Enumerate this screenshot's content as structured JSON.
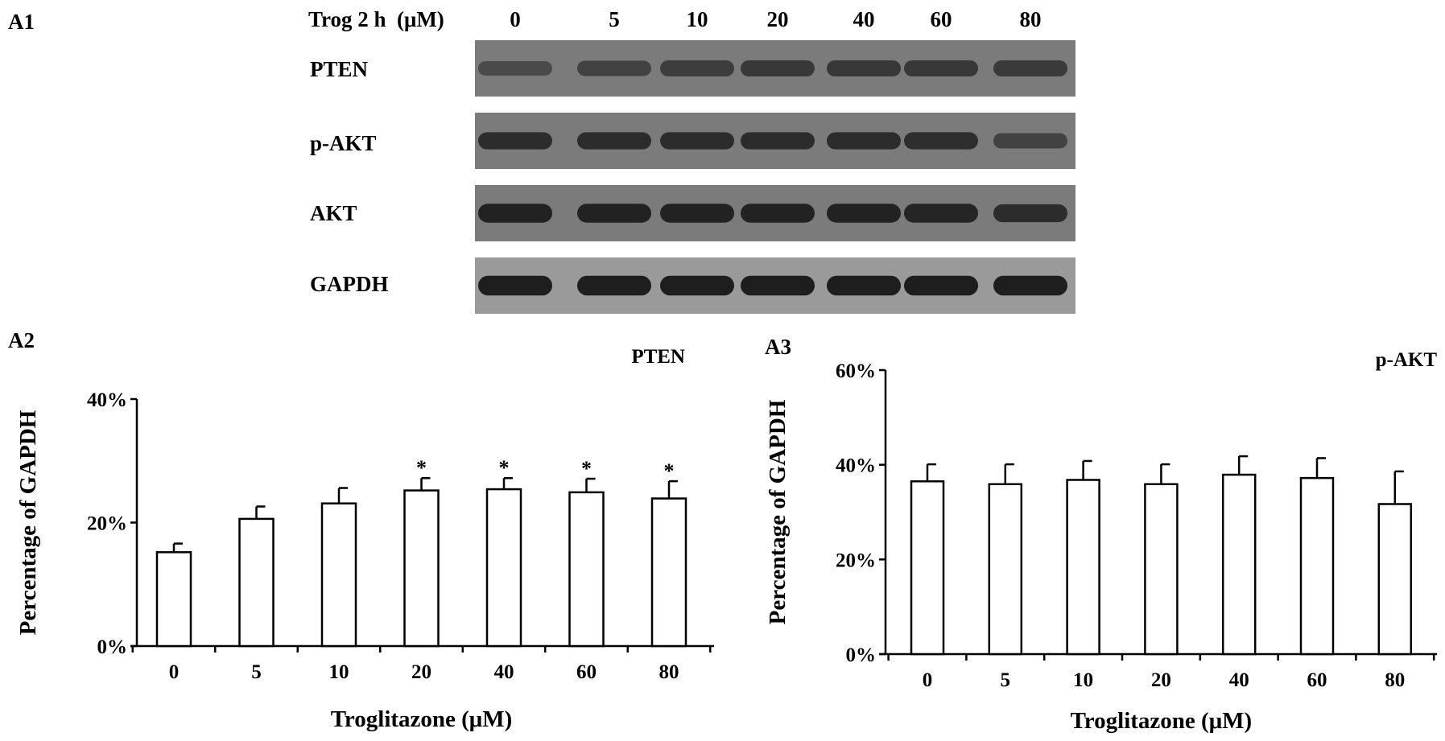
{
  "panel_labels": {
    "a1": "A1",
    "a2": "A2",
    "a3": "A3"
  },
  "blot": {
    "header_label": "Trog 2 h  (μM)",
    "lanes": [
      "0",
      "5",
      "10",
      "20",
      "40",
      "60",
      "80"
    ],
    "rows": [
      {
        "label": "PTEN",
        "band_intensity": [
          0.55,
          0.62,
          0.66,
          0.7,
          0.7,
          0.7,
          0.68
        ],
        "band_thickness": [
          0.45,
          0.5,
          0.55,
          0.55,
          0.55,
          0.55,
          0.55
        ]
      },
      {
        "label": "p-AKT",
        "band_intensity": [
          0.8,
          0.8,
          0.8,
          0.8,
          0.8,
          0.78,
          0.62
        ],
        "band_thickness": [
          0.6,
          0.6,
          0.6,
          0.6,
          0.6,
          0.6,
          0.5
        ]
      },
      {
        "label": "AKT",
        "band_intensity": [
          0.88,
          0.88,
          0.88,
          0.88,
          0.88,
          0.86,
          0.8
        ],
        "band_thickness": [
          0.7,
          0.7,
          0.7,
          0.7,
          0.7,
          0.7,
          0.65
        ]
      },
      {
        "label": "GAPDH",
        "band_intensity": [
          0.92,
          0.92,
          0.92,
          0.92,
          0.92,
          0.92,
          0.92
        ],
        "band_thickness": [
          0.75,
          0.75,
          0.75,
          0.75,
          0.75,
          0.75,
          0.75
        ]
      }
    ],
    "colors": {
      "membrane": "#7b7b7b",
      "membrane_light": "#9a9a9a",
      "band": "#1a1a1a"
    }
  },
  "chart_data": [
    {
      "type": "bar",
      "title": "PTEN",
      "xlabel": "Troglitazone (μM)",
      "ylabel": "Percentage of GAPDH",
      "categories": [
        "0",
        "5",
        "10",
        "20",
        "40",
        "60",
        "80"
      ],
      "values": [
        15.2,
        20.6,
        23.1,
        25.2,
        25.4,
        24.9,
        23.9
      ],
      "errors": [
        1.4,
        2.0,
        2.5,
        2.0,
        1.8,
        2.2,
        2.8
      ],
      "significance": [
        "",
        "",
        "",
        "*",
        "*",
        "*",
        "*"
      ],
      "ylim": [
        0,
        40
      ],
      "yticks": [
        "0%",
        "20%",
        "40%"
      ],
      "ytick_values": [
        0,
        20,
        40
      ],
      "grid": false,
      "colors": {
        "bar_fill": "#ffffff",
        "bar_stroke": "#000000"
      }
    },
    {
      "type": "bar",
      "title": "p-AKT",
      "xlabel": "Troglitazone (μM)",
      "ylabel": "Percentage of GAPDH",
      "categories": [
        "0",
        "5",
        "10",
        "20",
        "40",
        "60",
        "80"
      ],
      "values": [
        36.5,
        35.9,
        36.8,
        35.9,
        37.9,
        37.2,
        31.7
      ],
      "errors": [
        3.6,
        4.2,
        4.0,
        4.2,
        3.9,
        4.2,
        6.9
      ],
      "significance": [
        "",
        "",
        "",
        "",
        "",
        "",
        ""
      ],
      "ylim": [
        0,
        60
      ],
      "yticks": [
        "0%",
        "20%",
        "40%",
        "60%"
      ],
      "ytick_values": [
        0,
        20,
        40,
        60
      ],
      "grid": false,
      "colors": {
        "bar_fill": "#ffffff",
        "bar_stroke": "#000000"
      }
    }
  ]
}
